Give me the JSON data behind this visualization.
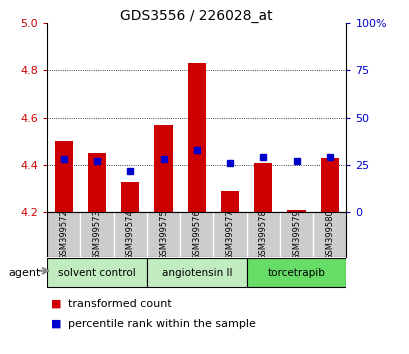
{
  "title": "GDS3556 / 226028_at",
  "samples": [
    "GSM399572",
    "GSM399573",
    "GSM399574",
    "GSM399575",
    "GSM399576",
    "GSM399577",
    "GSM399578",
    "GSM399579",
    "GSM399580"
  ],
  "transformed_counts": [
    4.5,
    4.45,
    4.33,
    4.57,
    4.83,
    4.29,
    4.41,
    4.21,
    4.43
  ],
  "percentile_ranks": [
    28,
    27,
    22,
    28,
    33,
    26,
    29,
    27,
    29
  ],
  "ylim": [
    4.2,
    5.0
  ],
  "yticks": [
    4.2,
    4.4,
    4.6,
    4.8,
    5.0
  ],
  "right_yticks": [
    0,
    25,
    50,
    75,
    100
  ],
  "bar_color": "#cc0000",
  "dot_color": "#0000cc",
  "bar_baseline": 4.2,
  "groups": [
    {
      "label": "solvent control",
      "indices": [
        0,
        1,
        2
      ],
      "color": "#c0ecc0"
    },
    {
      "label": "angiotensin II",
      "indices": [
        3,
        4,
        5
      ],
      "color": "#c0ecc0"
    },
    {
      "label": "torcetrapib",
      "indices": [
        6,
        7,
        8
      ],
      "color": "#66dd66"
    }
  ],
  "legend_items": [
    {
      "label": "transformed count",
      "color": "#cc0000"
    },
    {
      "label": "percentile rank within the sample",
      "color": "#0000cc"
    }
  ],
  "agent_label": "agent",
  "bg_color": "#ffffff",
  "tick_label_color_left": "#cc0000",
  "tick_label_color_right": "#0000cc",
  "sample_bg_color": "#cccccc",
  "gridline_ticks": [
    4.4,
    4.6,
    4.8
  ]
}
